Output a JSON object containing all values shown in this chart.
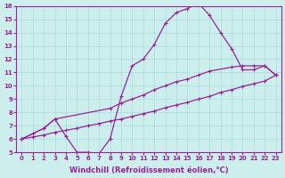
{
  "xlabel": "Windchill (Refroidissement éolien,°C)",
  "xlim": [
    -0.5,
    23.5
  ],
  "ylim": [
    5,
    16
  ],
  "xticks": [
    0,
    1,
    2,
    3,
    4,
    5,
    6,
    7,
    8,
    9,
    10,
    11,
    12,
    13,
    14,
    15,
    16,
    17,
    18,
    19,
    20,
    21,
    22,
    23
  ],
  "yticks": [
    5,
    6,
    7,
    8,
    9,
    10,
    11,
    12,
    13,
    14,
    15,
    16
  ],
  "bg_color": "#cceeed",
  "line_color": "#992299",
  "grid_color": "#aadddd",
  "line1_x": [
    0,
    1,
    2,
    3,
    4,
    5,
    6,
    7,
    8,
    9,
    10,
    11,
    12,
    13,
    14,
    15,
    16,
    17,
    18,
    19,
    20,
    21,
    22,
    23
  ],
  "line1_y": [
    6.0,
    6.4,
    6.8,
    7.5,
    6.2,
    5.0,
    5.0,
    4.9,
    6.0,
    9.2,
    11.5,
    12.0,
    13.1,
    14.7,
    15.5,
    15.8,
    16.2,
    15.3,
    14.0,
    12.8,
    11.2,
    11.2,
    11.5,
    10.8
  ],
  "line2_x": [
    0,
    2,
    3,
    8,
    9,
    10,
    11,
    12,
    13,
    14,
    15,
    16,
    17,
    19,
    20,
    21,
    22,
    23
  ],
  "line2_y": [
    6.0,
    6.8,
    7.5,
    8.3,
    8.7,
    9.0,
    9.3,
    9.7,
    10.0,
    10.3,
    10.5,
    10.8,
    11.1,
    11.4,
    11.5,
    11.5,
    11.5,
    10.8
  ],
  "line3_x": [
    0,
    1,
    2,
    3,
    4,
    5,
    6,
    7,
    8,
    9,
    10,
    11,
    12,
    13,
    14,
    15,
    16,
    17,
    18,
    19,
    20,
    21,
    22,
    23
  ],
  "line3_y": [
    6.0,
    6.15,
    6.3,
    6.5,
    6.65,
    6.8,
    7.0,
    7.15,
    7.35,
    7.5,
    7.7,
    7.9,
    8.1,
    8.35,
    8.55,
    8.75,
    9.0,
    9.2,
    9.5,
    9.7,
    9.95,
    10.15,
    10.35,
    10.8
  ],
  "marker": "+",
  "markersize": 3,
  "linewidth": 0.9,
  "label_fontsize": 6,
  "tick_fontsize": 5
}
